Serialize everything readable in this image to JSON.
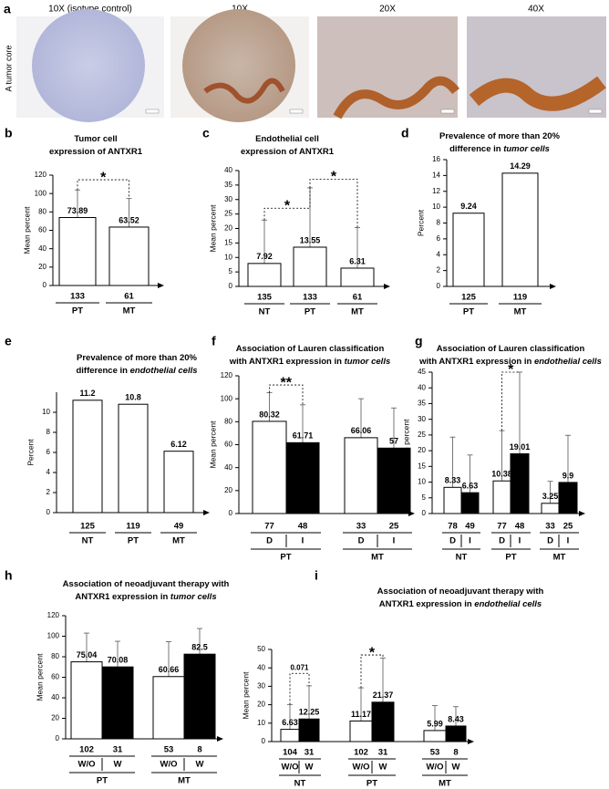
{
  "figure": {
    "panel": "a",
    "row_label": "A tumor core",
    "images": [
      "10X (isotype control)",
      "10X",
      "20X",
      "40X"
    ]
  },
  "chart_data": [
    {
      "type": "bar",
      "panel": "b",
      "title": [
        {
          "text": "Tumor cell"
        },
        {
          "text": "expression of ANTXR1"
        }
      ],
      "ylabel": "Mean percent",
      "ylim": [
        0,
        120
      ],
      "yticks": [
        0,
        20,
        40,
        60,
        80,
        100,
        120
      ],
      "groups": [
        {
          "categories": [
            "PT",
            "MT"
          ],
          "n": [
            133,
            61
          ],
          "values": [
            73.89,
            63.52
          ],
          "errors": [
            30,
            31
          ],
          "colors": [
            "#ffffff",
            "#ffffff"
          ]
        }
      ],
      "annotations": [
        "*"
      ]
    },
    {
      "type": "bar",
      "panel": "c",
      "title": [
        {
          "text": "Endothelial cell"
        },
        {
          "text": "expression of ANTXR1"
        }
      ],
      "ylabel": "Mean percent",
      "ylim": [
        0,
        40
      ],
      "yticks": [
        0,
        5,
        10,
        15,
        20,
        25,
        30,
        35,
        40
      ],
      "groups": [
        {
          "categories": [
            "NT",
            "PT",
            "MT"
          ],
          "n": [
            135,
            133,
            61
          ],
          "values": [
            7.92,
            13.55,
            6.31
          ],
          "errors": [
            15,
            20.5,
            14
          ],
          "colors": [
            "#ffffff",
            "#ffffff",
            "#ffffff"
          ]
        }
      ],
      "annotations": [
        "*",
        "*"
      ]
    },
    {
      "type": "bar",
      "panel": "d",
      "title": [
        {
          "text": "Prevalence of more than 20%"
        },
        {
          "text": "difference in",
          "italic": "tumor cells"
        }
      ],
      "ylabel": "Percent",
      "ylim": [
        0,
        16
      ],
      "yticks": [
        0,
        2,
        4,
        6,
        8,
        10,
        12,
        14,
        16
      ],
      "groups": [
        {
          "categories": [
            "PT",
            "MT"
          ],
          "n": [
            125,
            119
          ],
          "values": [
            9.24,
            14.29
          ],
          "colors": [
            "#ffffff",
            "#ffffff"
          ]
        }
      ],
      "annotations": []
    },
    {
      "type": "bar",
      "panel": "e",
      "title": [
        {
          "text": "Prevalence of more than 20%"
        },
        {
          "text": "difference in",
          "italic": "endothelial cells"
        }
      ],
      "ylabel": "Percent",
      "ylim": [
        0,
        12
      ],
      "yticks": [
        0,
        2,
        4,
        6,
        8,
        10
      ],
      "groups": [
        {
          "categories": [
            "NT",
            "PT",
            "MT"
          ],
          "n": [
            125,
            119,
            49
          ],
          "values": [
            11.2,
            10.8,
            6.12
          ],
          "colors": [
            "#ffffff",
            "#ffffff",
            "#ffffff"
          ]
        }
      ],
      "annotations": []
    },
    {
      "type": "bar",
      "panel": "f",
      "title": [
        {
          "text": "Association of Lauren classification"
        },
        {
          "text": "with ANTXR1 expression in",
          "italic": "tumor cells"
        }
      ],
      "ylabel": "Mean percent",
      "ylim": [
        0,
        120
      ],
      "yticks": [
        0,
        20,
        40,
        60,
        80,
        100,
        120
      ],
      "groups": [
        {
          "name": "PT",
          "categories": [
            "D",
            "I"
          ],
          "n": [
            77,
            48
          ],
          "values": [
            80.32,
            61.71
          ],
          "errors": [
            25,
            33
          ],
          "colors": [
            "#ffffff",
            "#000000"
          ]
        },
        {
          "name": "MT",
          "categories": [
            "D",
            "I"
          ],
          "n": [
            33,
            25
          ],
          "values": [
            66.06,
            57
          ],
          "errors": [
            34,
            35
          ],
          "colors": [
            "#ffffff",
            "#000000"
          ]
        }
      ],
      "annotations": [
        "**"
      ]
    },
    {
      "type": "bar",
      "panel": "g",
      "title": [
        {
          "text": "Association of Lauren classification"
        },
        {
          "text": "with ANTXR1 expression in",
          "italic": "endothelial cells"
        }
      ],
      "ylabel": "Mean percent",
      "ylim": [
        0,
        45
      ],
      "yticks": [
        0,
        5,
        10,
        15,
        20,
        25,
        30,
        35,
        40,
        45
      ],
      "groups": [
        {
          "name": "NT",
          "categories": [
            "D",
            "I"
          ],
          "n": [
            78,
            49
          ],
          "values": [
            8.33,
            6.63
          ],
          "errors": [
            16,
            12
          ],
          "colors": [
            "#ffffff",
            "#000000"
          ]
        },
        {
          "name": "PT",
          "categories": [
            "D",
            "I"
          ],
          "n": [
            77,
            48
          ],
          "values": [
            10.38,
            19.01
          ],
          "errors": [
            16,
            26
          ],
          "colors": [
            "#ffffff",
            "#000000"
          ]
        },
        {
          "name": "MT",
          "categories": [
            "D",
            "I"
          ],
          "n": [
            33,
            25
          ],
          "values": [
            3.25,
            9.9
          ],
          "errors": [
            7,
            15
          ],
          "colors": [
            "#ffffff",
            "#000000"
          ]
        }
      ],
      "annotations": [
        "*"
      ]
    },
    {
      "type": "bar",
      "panel": "h",
      "title": [
        {
          "text": "Association of neoadjuvant therapy with"
        },
        {
          "text": "ANTXR1 expression in",
          "italic": "tumor cells"
        }
      ],
      "ylabel": "Mean percent",
      "ylim": [
        0,
        120
      ],
      "yticks": [
        0,
        20,
        40,
        60,
        80,
        100,
        120
      ],
      "groups": [
        {
          "name": "PT",
          "categories": [
            "W/O",
            "W"
          ],
          "n": [
            102,
            31
          ],
          "values": [
            75.04,
            70.08
          ],
          "errors": [
            28,
            25
          ],
          "colors": [
            "#ffffff",
            "#000000"
          ]
        },
        {
          "name": "MT",
          "categories": [
            "W/O",
            "W"
          ],
          "n": [
            53,
            8
          ],
          "values": [
            60.66,
            82.5
          ],
          "errors": [
            34,
            25
          ],
          "colors": [
            "#ffffff",
            "#000000"
          ]
        }
      ],
      "annotations": []
    },
    {
      "type": "bar",
      "panel": "i",
      "title": [
        {
          "text": "Association of neoadjuvant therapy with"
        },
        {
          "text": "ANTXR1 expression in",
          "italic": "endothelial cells"
        }
      ],
      "ylabel": "Mean percent",
      "ylim": [
        0,
        50
      ],
      "yticks": [
        0,
        10,
        20,
        30,
        40,
        50
      ],
      "groups": [
        {
          "name": "NT",
          "categories": [
            "W/O",
            "W"
          ],
          "n": [
            104,
            31
          ],
          "values": [
            6.63,
            12.25
          ],
          "errors": [
            13.5,
            18
          ],
          "colors": [
            "#ffffff",
            "#000000"
          ]
        },
        {
          "name": "PT",
          "categories": [
            "W/O",
            "W"
          ],
          "n": [
            102,
            31
          ],
          "values": [
            11.17,
            21.37
          ],
          "errors": [
            18,
            24
          ],
          "colors": [
            "#ffffff",
            "#000000"
          ]
        },
        {
          "name": "MT",
          "categories": [
            "W/O",
            "W"
          ],
          "n": [
            53,
            8
          ],
          "values": [
            5.99,
            8.43
          ],
          "errors": [
            13.5,
            10.5
          ],
          "colors": [
            "#ffffff",
            "#000000"
          ]
        }
      ],
      "annotations": [
        "0.071",
        "*"
      ]
    }
  ]
}
